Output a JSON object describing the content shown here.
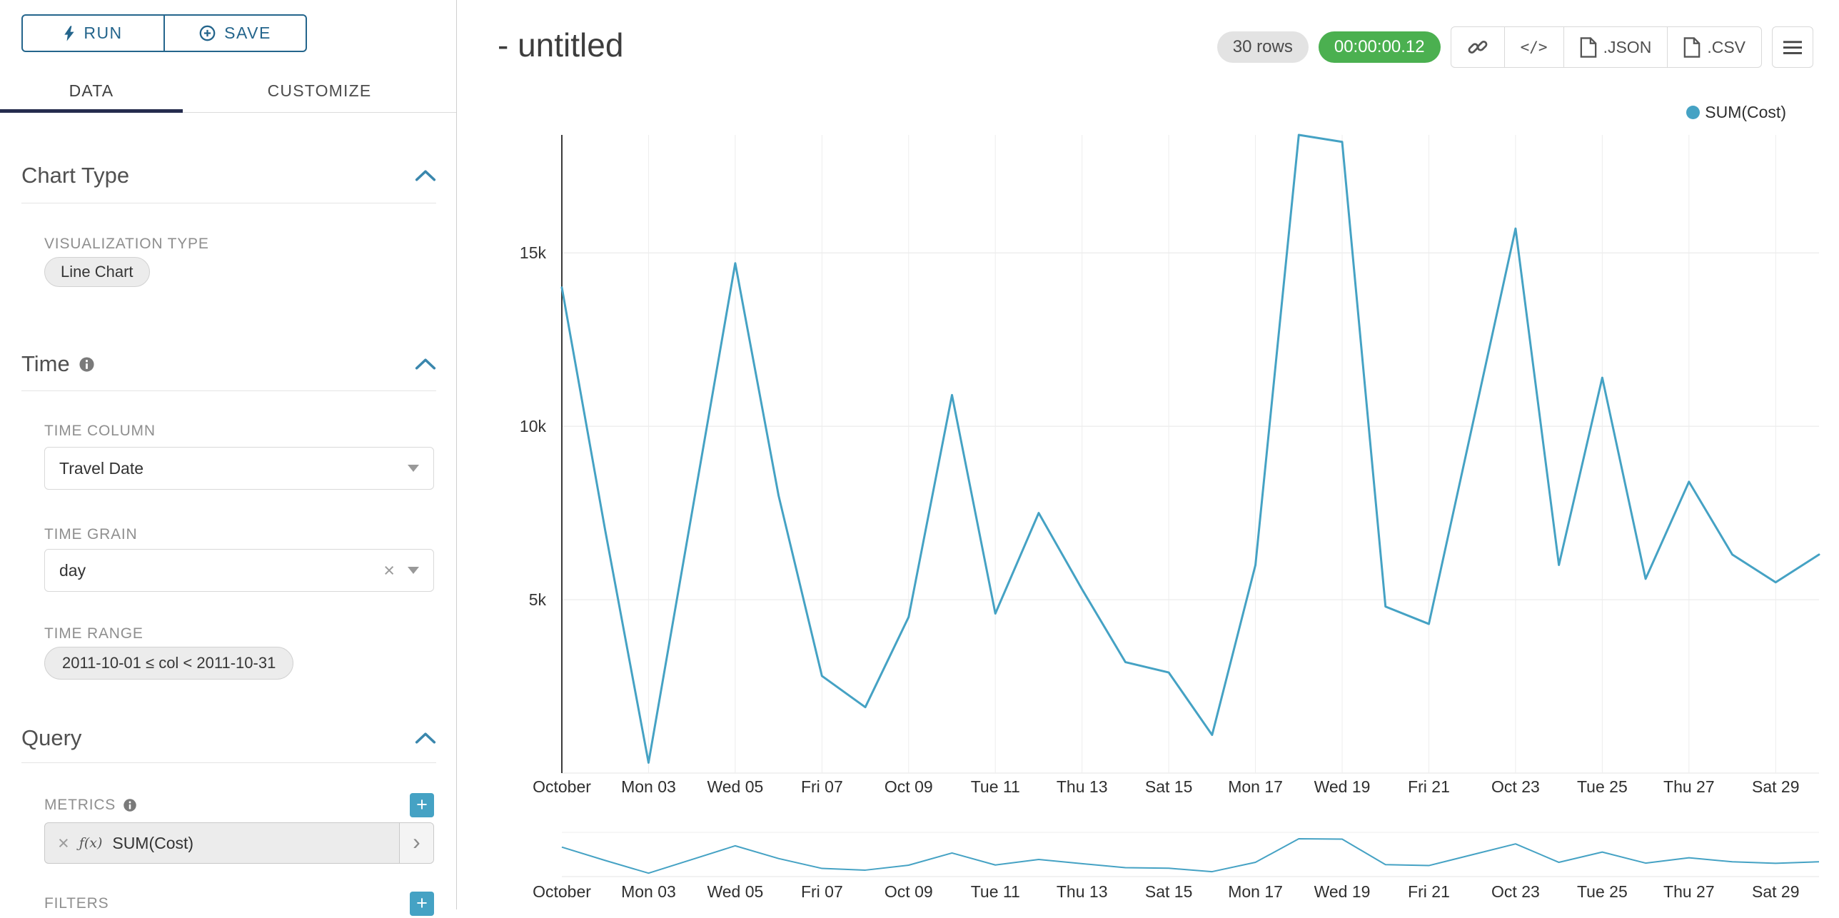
{
  "colors": {
    "accent": "#45a2c4",
    "button_blue": "#24658c",
    "tab_underline": "#252c4e",
    "timer_green": "#4bb050",
    "section_chevron": "#3a87ad"
  },
  "glyphs": {
    "code": "</>",
    "clear": "×",
    "chevron_right": "›",
    "fx": "ƒ(x)",
    "plus": "+"
  },
  "sidebar": {
    "run_label": "RUN",
    "save_label": "SAVE",
    "tabs": [
      {
        "label": "DATA",
        "active": true
      },
      {
        "label": "CUSTOMIZE",
        "active": false
      }
    ],
    "chart_type": {
      "title": "Chart Type",
      "viz_type_label": "VISUALIZATION TYPE",
      "viz_type_value": "Line Chart"
    },
    "time": {
      "title": "Time",
      "column_label": "TIME COLUMN",
      "column_value": "Travel Date",
      "grain_label": "TIME GRAIN",
      "grain_value": "day",
      "range_label": "TIME RANGE",
      "range_value": "2011-10-01 ≤ col < 2011-10-31"
    },
    "query": {
      "title": "Query",
      "metrics_label": "METRICS",
      "metric_value": "SUM(Cost)",
      "filters_label": "FILTERS"
    }
  },
  "header": {
    "title": "- untitled",
    "rows_badge": "30 rows",
    "timer_badge": "00:00:00.12",
    "json_label": ".JSON",
    "csv_label": ".CSV"
  },
  "legend": {
    "label": "SUM(Cost)"
  },
  "chart_data": {
    "type": "line",
    "title": "- untitled",
    "legend": [
      "SUM(Cost)"
    ],
    "legend_position": "top-right",
    "grid": true,
    "has_context_brush_chart": true,
    "x": [
      "2011-10-01",
      "2011-10-02",
      "2011-10-03",
      "2011-10-04",
      "2011-10-05",
      "2011-10-06",
      "2011-10-07",
      "2011-10-08",
      "2011-10-09",
      "2011-10-10",
      "2011-10-11",
      "2011-10-12",
      "2011-10-13",
      "2011-10-14",
      "2011-10-15",
      "2011-10-16",
      "2011-10-17",
      "2011-10-18",
      "2011-10-19",
      "2011-10-20",
      "2011-10-21",
      "2011-10-22",
      "2011-10-23",
      "2011-10-24",
      "2011-10-25",
      "2011-10-26",
      "2011-10-27",
      "2011-10-28",
      "2011-10-29",
      "2011-10-30"
    ],
    "series": [
      {
        "name": "SUM(Cost)",
        "values": [
          14000,
          7000,
          300,
          7500,
          14700,
          8000,
          2800,
          1900,
          4500,
          10900,
          4600,
          7500,
          5300,
          3200,
          2900,
          1100,
          6000,
          18400,
          18200,
          4800,
          4300,
          10000,
          15700,
          6000,
          11400,
          5600,
          8400,
          6300,
          5500,
          6300
        ]
      }
    ],
    "x_tick_indices": [
      0,
      2,
      4,
      6,
      8,
      10,
      12,
      14,
      16,
      18,
      20,
      22,
      24,
      26,
      28
    ],
    "x_tick_labels": [
      "October",
      "Mon 03",
      "Wed 05",
      "Fri 07",
      "Oct 09",
      "Tue 11",
      "Thu 13",
      "Sat 15",
      "Mon 17",
      "Wed 19",
      "Fri 21",
      "Oct 23",
      "Tue 25",
      "Thu 27",
      "Sat 29"
    ],
    "y_ticks": [
      5000,
      10000,
      15000
    ],
    "y_tick_labels": [
      "5k",
      "10k",
      "15k"
    ],
    "ylim": [
      0,
      18400
    ]
  }
}
